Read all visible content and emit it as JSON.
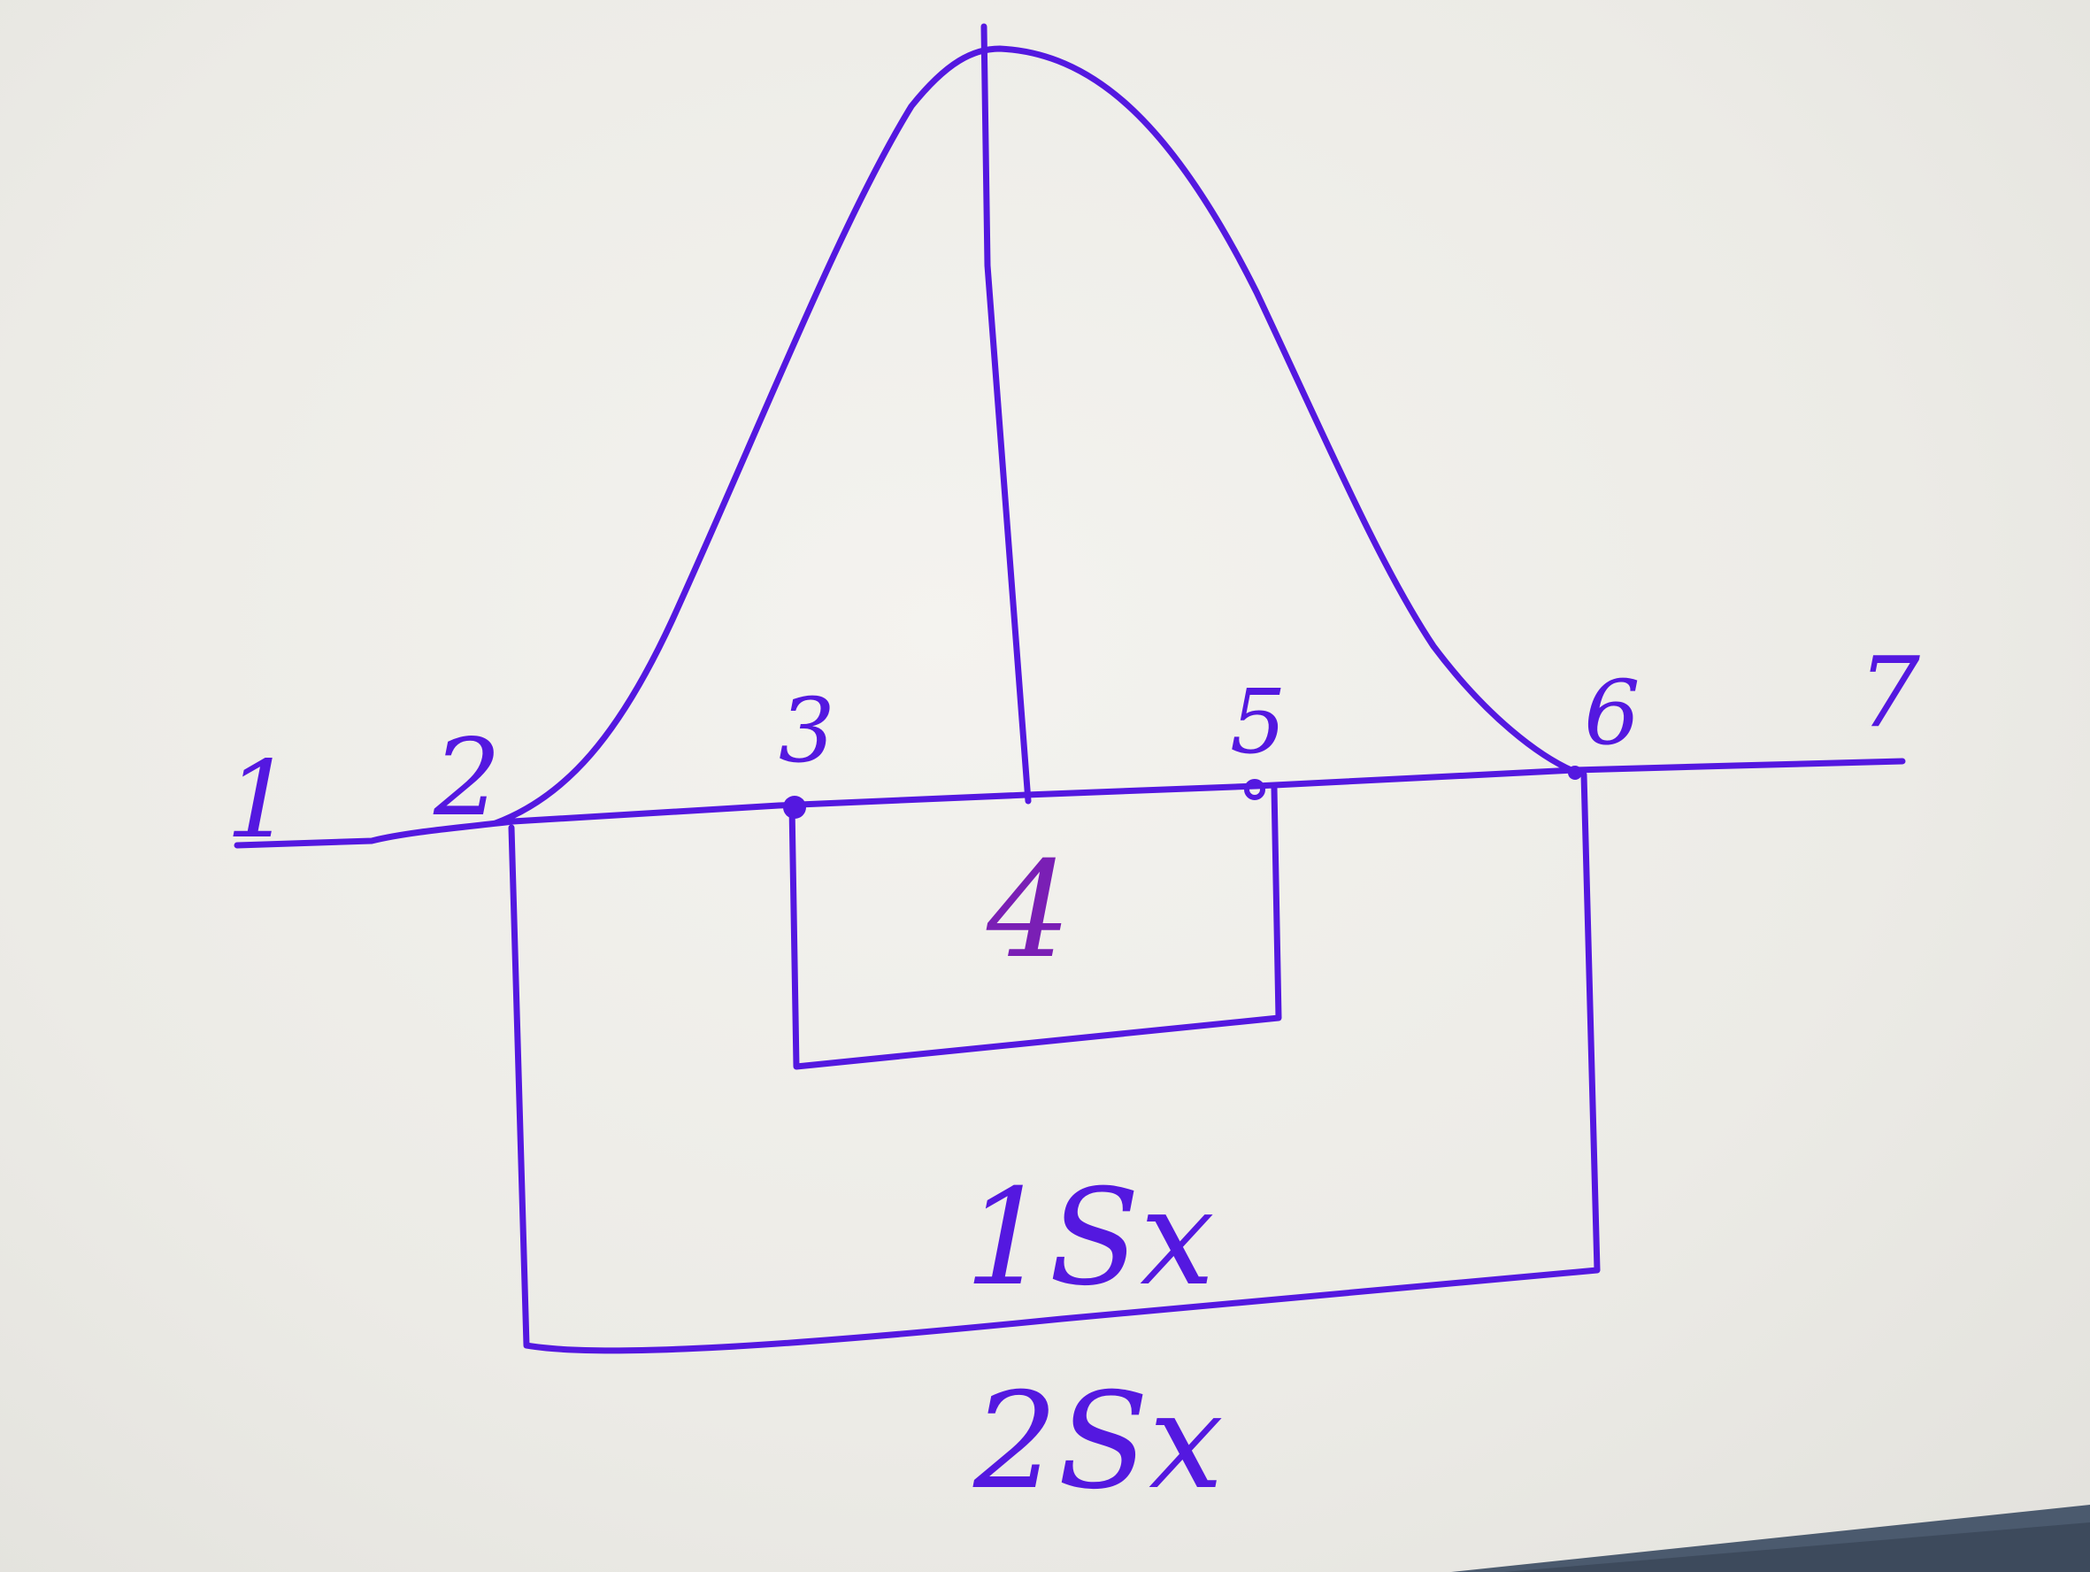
{
  "diagram": {
    "ink_color": "#5418e0",
    "tick_labels": [
      "1",
      "2",
      "3",
      "5",
      "6",
      "7"
    ],
    "inner_box_label": "4",
    "middle_box_label": "1Sx",
    "outer_box_label": "2Sx"
  }
}
